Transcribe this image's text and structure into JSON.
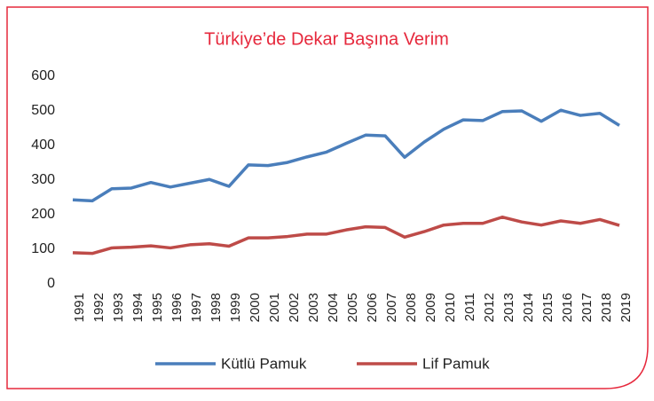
{
  "chart_data": {
    "type": "line",
    "title": "Türkiye’de Dekar Başına Verim",
    "categories": [
      "1991",
      "1992",
      "1993",
      "1994",
      "1995",
      "1996",
      "1997",
      "1998",
      "1999",
      "2000",
      "2001",
      "2002",
      "2003",
      "2004",
      "2005",
      "2006",
      "2007",
      "2008",
      "2009",
      "2010",
      "2011",
      "2012",
      "2013",
      "2014",
      "2015",
      "2016",
      "2017",
      "2018",
      "2019"
    ],
    "series": [
      {
        "name": "Kütlü Pamuk",
        "color": "#4a7ebb",
        "values": [
          243,
          240,
          275,
          277,
          293,
          280,
          291,
          302,
          282,
          344,
          342,
          351,
          367,
          381,
          406,
          430,
          428,
          366,
          410,
          447,
          474,
          472,
          498,
          500,
          470,
          502,
          487,
          493,
          458
        ]
      },
      {
        "name": "Lif Pamuk",
        "color": "#be4b48",
        "values": [
          90,
          88,
          104,
          106,
          110,
          104,
          113,
          116,
          109,
          133,
          133,
          137,
          144,
          144,
          156,
          165,
          163,
          135,
          151,
          170,
          175,
          175,
          193,
          179,
          170,
          182,
          175,
          186,
          169
        ]
      }
    ],
    "ylim": [
      0,
      600
    ],
    "yticks": [
      0,
      100,
      200,
      300,
      400,
      500,
      600
    ],
    "grid": false,
    "legend": "bottom"
  }
}
